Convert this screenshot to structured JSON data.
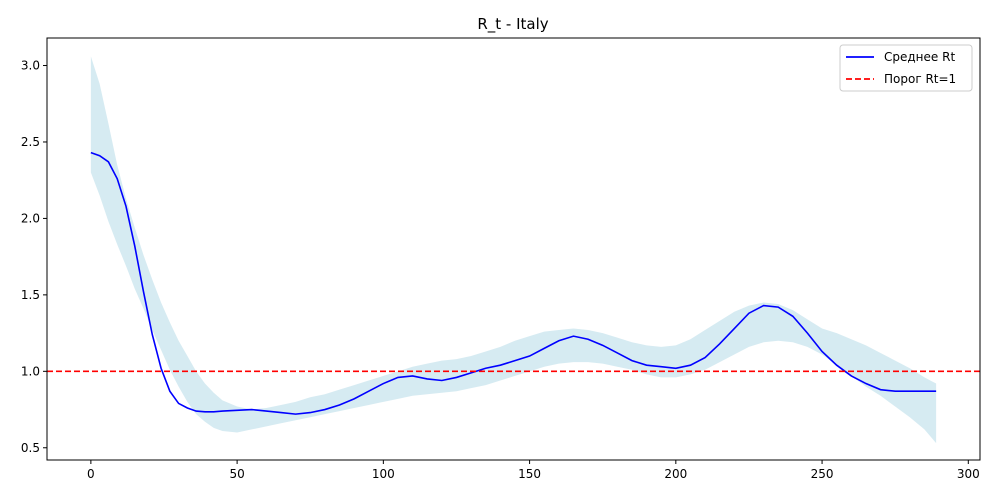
{
  "chart_data": {
    "type": "line",
    "title": "R_t - Italy",
    "xlabel": "",
    "ylabel": "",
    "xlim": [
      -15,
      304
    ],
    "ylim": [
      0.42,
      3.18
    ],
    "xticks": [
      0,
      50,
      100,
      150,
      200,
      250,
      300
    ],
    "yticks": [
      0.5,
      1.0,
      1.5,
      2.0,
      2.5,
      3.0
    ],
    "grid": false,
    "legend_position": "top-right",
    "series": [
      {
        "name": "Среднее Rt",
        "color": "#0000ff",
        "style": "solid",
        "x": [
          0,
          3,
          6,
          9,
          12,
          15,
          18,
          21,
          24,
          27,
          30,
          33,
          36,
          39,
          42,
          45,
          50,
          55,
          60,
          65,
          70,
          75,
          80,
          85,
          90,
          95,
          100,
          105,
          110,
          115,
          120,
          125,
          130,
          135,
          140,
          145,
          150,
          155,
          160,
          165,
          170,
          175,
          180,
          185,
          190,
          195,
          200,
          205,
          210,
          215,
          220,
          225,
          230,
          235,
          240,
          245,
          250,
          255,
          260,
          265,
          270,
          275,
          280,
          285,
          289
        ],
        "y": [
          2.43,
          2.41,
          2.37,
          2.26,
          2.08,
          1.82,
          1.52,
          1.24,
          1.02,
          0.87,
          0.79,
          0.76,
          0.74,
          0.735,
          0.735,
          0.74,
          0.745,
          0.75,
          0.74,
          0.73,
          0.72,
          0.73,
          0.75,
          0.78,
          0.82,
          0.87,
          0.92,
          0.96,
          0.97,
          0.95,
          0.94,
          0.96,
          0.99,
          1.02,
          1.04,
          1.07,
          1.1,
          1.15,
          1.2,
          1.23,
          1.21,
          1.17,
          1.12,
          1.07,
          1.04,
          1.03,
          1.02,
          1.04,
          1.09,
          1.18,
          1.28,
          1.38,
          1.43,
          1.42,
          1.36,
          1.25,
          1.13,
          1.04,
          0.97,
          0.92,
          0.88,
          0.87,
          0.87,
          0.87,
          0.87
        ]
      },
      {
        "name": "Порог Rt=1",
        "color": "#ff0000",
        "style": "dashed",
        "x": [
          -15,
          304
        ],
        "y": [
          1.0,
          1.0
        ]
      }
    ],
    "band": {
      "color": "#add8e6",
      "opacity": 0.5,
      "x": [
        0,
        3,
        6,
        9,
        12,
        15,
        18,
        21,
        24,
        27,
        30,
        33,
        36,
        39,
        42,
        45,
        50,
        55,
        60,
        65,
        70,
        75,
        80,
        85,
        90,
        95,
        100,
        105,
        110,
        115,
        120,
        125,
        130,
        135,
        140,
        145,
        150,
        155,
        160,
        165,
        170,
        175,
        180,
        185,
        190,
        195,
        200,
        205,
        210,
        215,
        220,
        225,
        230,
        235,
        240,
        245,
        250,
        255,
        260,
        265,
        270,
        275,
        280,
        285,
        289
      ],
      "upper": [
        3.06,
        2.88,
        2.62,
        2.35,
        2.13,
        1.94,
        1.76,
        1.6,
        1.45,
        1.32,
        1.2,
        1.1,
        1.0,
        0.92,
        0.86,
        0.81,
        0.77,
        0.75,
        0.76,
        0.78,
        0.8,
        0.83,
        0.85,
        0.88,
        0.91,
        0.94,
        0.97,
        1.0,
        1.03,
        1.05,
        1.07,
        1.08,
        1.1,
        1.13,
        1.16,
        1.2,
        1.23,
        1.26,
        1.27,
        1.28,
        1.27,
        1.25,
        1.22,
        1.19,
        1.17,
        1.16,
        1.17,
        1.21,
        1.27,
        1.33,
        1.39,
        1.43,
        1.45,
        1.44,
        1.4,
        1.34,
        1.28,
        1.25,
        1.21,
        1.17,
        1.12,
        1.07,
        1.02,
        0.96,
        0.92
      ],
      "lower": [
        2.3,
        2.15,
        1.98,
        1.83,
        1.69,
        1.54,
        1.41,
        1.27,
        1.14,
        1.01,
        0.9,
        0.8,
        0.72,
        0.67,
        0.63,
        0.61,
        0.6,
        0.62,
        0.64,
        0.66,
        0.68,
        0.7,
        0.72,
        0.74,
        0.76,
        0.78,
        0.8,
        0.82,
        0.84,
        0.85,
        0.86,
        0.87,
        0.89,
        0.91,
        0.94,
        0.97,
        1.0,
        1.03,
        1.05,
        1.06,
        1.06,
        1.05,
        1.03,
        1.01,
        0.98,
        0.96,
        0.96,
        0.98,
        1.01,
        1.06,
        1.11,
        1.16,
        1.19,
        1.2,
        1.19,
        1.16,
        1.11,
        1.04,
        0.97,
        0.9,
        0.84,
        0.77,
        0.7,
        0.62,
        0.53
      ]
    }
  }
}
